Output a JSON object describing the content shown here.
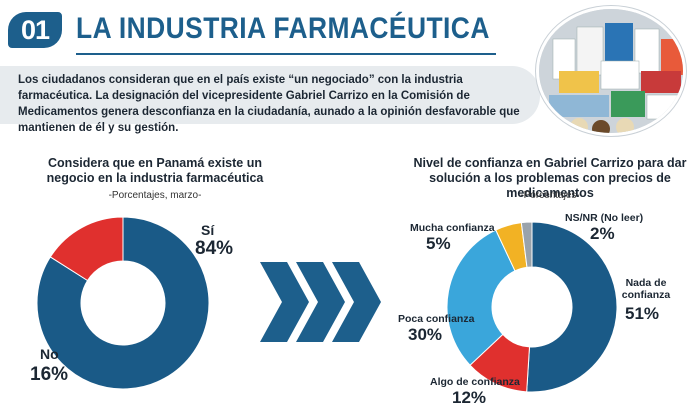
{
  "header": {
    "number": "01",
    "title": "LA INDUSTRIA FARMACÉUTICA",
    "intro": "Los ciudadanos consideran que en el país existe “un negociado” con la industria farmacéutica. La designación del vicepresidente Gabriel Carrizo en la Comisión de Medicamentos genera desconfianza en la ciudadanía, aunado a la opinión desfavorable que mantienen de él y su gestión."
  },
  "colors": {
    "accent": "#1d5f8c",
    "dark_blue": "#1a5a87",
    "red": "#e0302e",
    "light_blue": "#3aa6db",
    "yellow": "#f2b224",
    "gray": "#9aa3ab"
  },
  "chart_data": [
    {
      "type": "pie",
      "title": "Considera que en Panamá existe un negocio en la industria farmacéutica",
      "subtitle": "-Porcentajes, marzo-",
      "labels": [
        "Sí",
        "No"
      ],
      "values": [
        84,
        16
      ],
      "value_labels": [
        "84%",
        "16%"
      ]
    },
    {
      "type": "pie",
      "title": "Nivel de confianza en Gabriel Carrizo para dar solución a los problemas con precios de medicamentos",
      "subtitle": "-Porcentajes-",
      "labels": [
        "Nada de confianza",
        "Algo de confianza",
        "Poca confianza",
        "Mucha confianza",
        "NS/NR (No leer)"
      ],
      "values": [
        51,
        12,
        30,
        5,
        2
      ],
      "value_labels": [
        "51%",
        "12%",
        "30%",
        "5%",
        "2%"
      ]
    }
  ]
}
